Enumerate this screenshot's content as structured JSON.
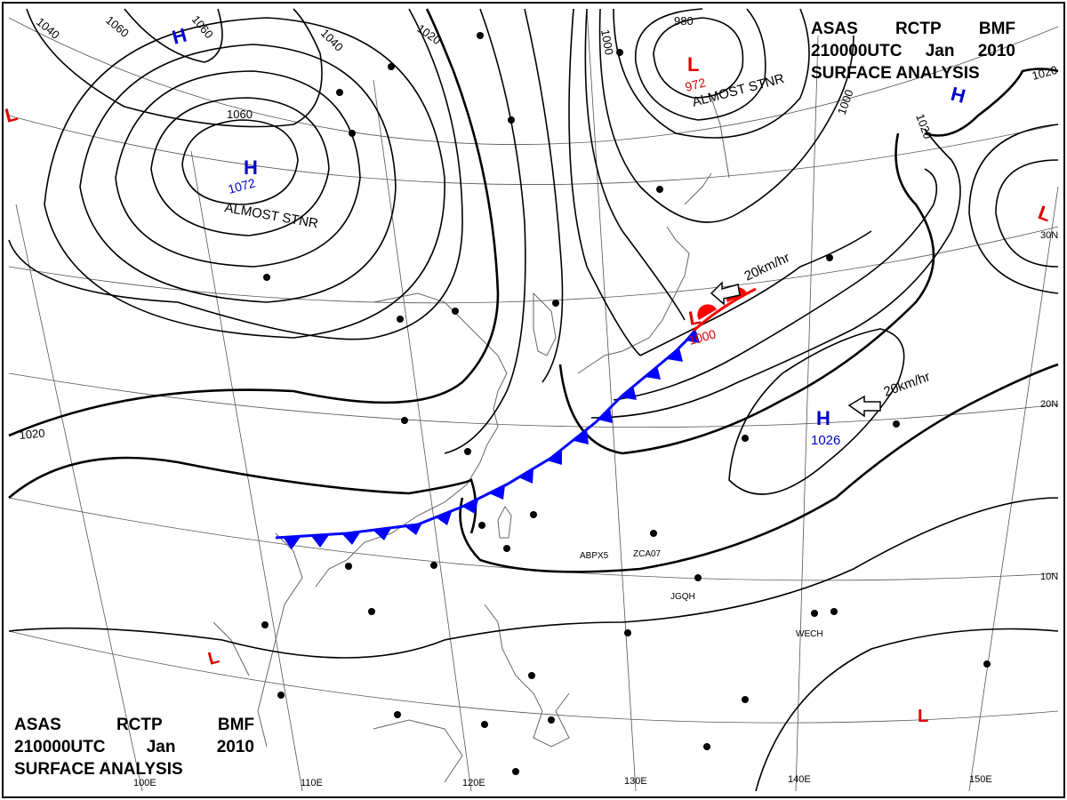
{
  "chart_title": {
    "agency": "ASAS",
    "center": "RCTP",
    "office": "BMF",
    "valid_time": "210000UTC",
    "month": "Jan",
    "year": "2010",
    "product": "SURFACE ANALYSIS"
  },
  "isobar_labels": [
    "1060",
    "1060",
    "1040",
    "1040",
    "1020",
    "1060",
    "1072",
    "1000",
    "980",
    "972",
    "1000",
    "1020",
    "1020",
    "1000",
    "1020",
    "1026"
  ],
  "pressure_centers": [
    {
      "type": "H",
      "value": "",
      "note": ""
    },
    {
      "type": "H",
      "value": "1072",
      "note": "ALMOST STNR"
    },
    {
      "type": "L",
      "value": "972",
      "note": "ALMOST STNR"
    },
    {
      "type": "H",
      "value": "",
      "note": ""
    },
    {
      "type": "L",
      "value": "",
      "note": ""
    },
    {
      "type": "L",
      "value": "",
      "note": ""
    },
    {
      "type": "L",
      "value": "1000",
      "note": ""
    },
    {
      "type": "H",
      "value": "1026",
      "note": ""
    },
    {
      "type": "L",
      "value": "",
      "note": ""
    },
    {
      "type": "L",
      "value": "",
      "note": ""
    }
  ],
  "motion_vectors": [
    "20km/hr",
    "20km/hr"
  ],
  "longitude_labels": [
    "100E",
    "110E",
    "120E",
    "130E",
    "140E",
    "150E"
  ],
  "latitude_labels": [
    "30N",
    "20N",
    "10N"
  ],
  "station_ids": [
    "ABPX5",
    "ZCA07",
    "JGQH",
    "WECH"
  ],
  "colors": {
    "high": "#0000cc",
    "low": "#e00000",
    "cold_front": "#0000ff",
    "warm_front": "#ff0000",
    "isobar": "#000000",
    "grid": "#555555",
    "coast": "#555555"
  }
}
